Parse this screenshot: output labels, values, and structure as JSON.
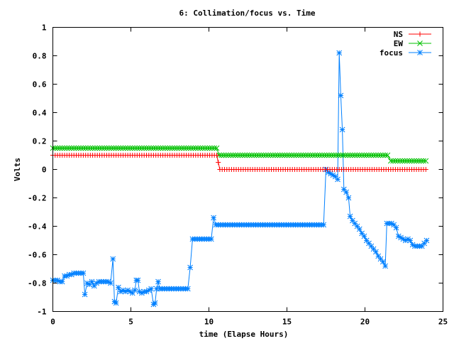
{
  "chart_data": {
    "type": "line",
    "title": "6: Collimation/focus vs. Time",
    "xlabel": "time (Elapse Hours)",
    "ylabel": "Volts",
    "xlim": [
      0,
      25
    ],
    "ylim": [
      -1,
      1
    ],
    "xticks": [
      0,
      5,
      10,
      15,
      20,
      25
    ],
    "yticks": [
      -1,
      -0.8,
      -0.6,
      -0.4,
      -0.2,
      0,
      0.2,
      0.4,
      0.6,
      0.8,
      1
    ],
    "xtick_labels": [
      "0",
      "5",
      "10",
      "15",
      "20",
      "25"
    ],
    "ytick_labels": [
      "-1",
      "-0.8",
      "-0.6",
      "-0.4",
      "-0.2",
      "0",
      "0.2",
      "0.4",
      "0.6",
      "0.8",
      "1"
    ],
    "grid": false,
    "legend_position": "top-right",
    "series": [
      {
        "name": "NS",
        "color": "#ff0000",
        "marker": "plus",
        "segments": [
          {
            "x_start": 0.0,
            "x_end": 10.5,
            "step": 0.15,
            "y": 0.1
          },
          {
            "x_start": 10.6,
            "x_end": 10.6,
            "step": 1,
            "y": 0.05
          },
          {
            "x_start": 10.7,
            "x_end": 24.0,
            "step": 0.15,
            "y": 0.0
          }
        ]
      },
      {
        "name": "EW",
        "color": "#00c000",
        "marker": "cross",
        "segments": [
          {
            "x_start": 0.0,
            "x_end": 10.5,
            "step": 0.15,
            "y": 0.15
          },
          {
            "x_start": 10.65,
            "x_end": 21.5,
            "step": 0.15,
            "y": 0.1
          },
          {
            "x_start": 21.65,
            "x_end": 24.0,
            "step": 0.15,
            "y": 0.06
          }
        ]
      },
      {
        "name": "focus",
        "color": "#0080ff",
        "marker": "star",
        "points": [
          [
            0.0,
            -0.78
          ],
          [
            0.15,
            -0.78
          ],
          [
            0.3,
            -0.78
          ],
          [
            0.45,
            -0.79
          ],
          [
            0.6,
            -0.79
          ],
          [
            0.75,
            -0.75
          ],
          [
            0.9,
            -0.75
          ],
          [
            1.05,
            -0.74
          ],
          [
            1.2,
            -0.74
          ],
          [
            1.35,
            -0.73
          ],
          [
            1.5,
            -0.73
          ],
          [
            1.65,
            -0.73
          ],
          [
            1.8,
            -0.73
          ],
          [
            1.95,
            -0.73
          ],
          [
            2.05,
            -0.88
          ],
          [
            2.2,
            -0.8
          ],
          [
            2.35,
            -0.81
          ],
          [
            2.5,
            -0.79
          ],
          [
            2.65,
            -0.82
          ],
          [
            2.8,
            -0.8
          ],
          [
            2.95,
            -0.79
          ],
          [
            3.1,
            -0.79
          ],
          [
            3.25,
            -0.79
          ],
          [
            3.4,
            -0.79
          ],
          [
            3.55,
            -0.79
          ],
          [
            3.7,
            -0.8
          ],
          [
            3.85,
            -0.63
          ],
          [
            3.95,
            -0.93
          ],
          [
            4.05,
            -0.94
          ],
          [
            4.2,
            -0.83
          ],
          [
            4.35,
            -0.86
          ],
          [
            4.5,
            -0.85
          ],
          [
            4.65,
            -0.86
          ],
          [
            4.8,
            -0.85
          ],
          [
            4.95,
            -0.86
          ],
          [
            5.1,
            -0.87
          ],
          [
            5.25,
            -0.85
          ],
          [
            5.35,
            -0.78
          ],
          [
            5.45,
            -0.78
          ],
          [
            5.55,
            -0.86
          ],
          [
            5.7,
            -0.87
          ],
          [
            5.85,
            -0.86
          ],
          [
            6.0,
            -0.86
          ],
          [
            6.15,
            -0.85
          ],
          [
            6.3,
            -0.84
          ],
          [
            6.45,
            -0.95
          ],
          [
            6.55,
            -0.94
          ],
          [
            6.65,
            -0.84
          ],
          [
            6.75,
            -0.79
          ],
          [
            6.85,
            -0.84
          ],
          [
            7.0,
            -0.84
          ],
          [
            7.15,
            -0.84
          ],
          [
            7.3,
            -0.84
          ],
          [
            7.45,
            -0.84
          ],
          [
            7.6,
            -0.84
          ],
          [
            7.75,
            -0.84
          ],
          [
            7.9,
            -0.84
          ],
          [
            8.05,
            -0.84
          ],
          [
            8.2,
            -0.84
          ],
          [
            8.35,
            -0.84
          ],
          [
            8.5,
            -0.84
          ],
          [
            8.65,
            -0.84
          ],
          [
            8.8,
            -0.69
          ],
          [
            8.95,
            -0.49
          ],
          [
            9.1,
            -0.49
          ],
          [
            9.25,
            -0.49
          ],
          [
            9.4,
            -0.49
          ],
          [
            9.55,
            -0.49
          ],
          [
            9.7,
            -0.49
          ],
          [
            9.85,
            -0.49
          ],
          [
            10.0,
            -0.49
          ],
          [
            10.15,
            -0.49
          ],
          [
            10.3,
            -0.34
          ],
          [
            10.45,
            -0.39
          ],
          [
            10.6,
            -0.39
          ],
          [
            10.75,
            -0.39
          ],
          [
            10.9,
            -0.39
          ],
          [
            11.05,
            -0.39
          ],
          [
            11.2,
            -0.39
          ],
          [
            11.35,
            -0.39
          ],
          [
            11.5,
            -0.39
          ],
          [
            11.65,
            -0.39
          ],
          [
            11.8,
            -0.39
          ],
          [
            11.95,
            -0.39
          ],
          [
            12.1,
            -0.39
          ],
          [
            12.25,
            -0.39
          ],
          [
            12.4,
            -0.39
          ],
          [
            12.55,
            -0.39
          ],
          [
            12.7,
            -0.39
          ],
          [
            12.85,
            -0.39
          ],
          [
            13.0,
            -0.39
          ],
          [
            13.15,
            -0.39
          ],
          [
            13.3,
            -0.39
          ],
          [
            13.45,
            -0.39
          ],
          [
            13.6,
            -0.39
          ],
          [
            13.75,
            -0.39
          ],
          [
            13.9,
            -0.39
          ],
          [
            14.05,
            -0.39
          ],
          [
            14.2,
            -0.39
          ],
          [
            14.35,
            -0.39
          ],
          [
            14.5,
            -0.39
          ],
          [
            14.65,
            -0.39
          ],
          [
            14.8,
            -0.39
          ],
          [
            14.95,
            -0.39
          ],
          [
            15.1,
            -0.39
          ],
          [
            15.25,
            -0.39
          ],
          [
            15.4,
            -0.39
          ],
          [
            15.55,
            -0.39
          ],
          [
            15.7,
            -0.39
          ],
          [
            15.85,
            -0.39
          ],
          [
            16.0,
            -0.39
          ],
          [
            16.15,
            -0.39
          ],
          [
            16.3,
            -0.39
          ],
          [
            16.45,
            -0.39
          ],
          [
            16.6,
            -0.39
          ],
          [
            16.75,
            -0.39
          ],
          [
            16.9,
            -0.39
          ],
          [
            17.05,
            -0.39
          ],
          [
            17.2,
            -0.39
          ],
          [
            17.35,
            -0.39
          ],
          [
            17.5,
            0.0
          ],
          [
            17.65,
            -0.02
          ],
          [
            17.8,
            -0.03
          ],
          [
            17.95,
            -0.04
          ],
          [
            18.1,
            -0.05
          ],
          [
            18.25,
            -0.07
          ],
          [
            18.35,
            0.82
          ],
          [
            18.45,
            0.52
          ],
          [
            18.55,
            0.28
          ],
          [
            18.65,
            -0.14
          ],
          [
            18.8,
            -0.16
          ],
          [
            18.95,
            -0.2
          ],
          [
            19.05,
            -0.33
          ],
          [
            19.2,
            -0.36
          ],
          [
            19.35,
            -0.38
          ],
          [
            19.5,
            -0.4
          ],
          [
            19.65,
            -0.42
          ],
          [
            19.8,
            -0.45
          ],
          [
            19.95,
            -0.47
          ],
          [
            20.1,
            -0.5
          ],
          [
            20.25,
            -0.52
          ],
          [
            20.4,
            -0.54
          ],
          [
            20.55,
            -0.56
          ],
          [
            20.7,
            -0.58
          ],
          [
            20.85,
            -0.61
          ],
          [
            21.0,
            -0.63
          ],
          [
            21.15,
            -0.65
          ],
          [
            21.3,
            -0.68
          ],
          [
            21.4,
            -0.38
          ],
          [
            21.55,
            -0.38
          ],
          [
            21.7,
            -0.38
          ],
          [
            21.85,
            -0.39
          ],
          [
            22.0,
            -0.41
          ],
          [
            22.15,
            -0.47
          ],
          [
            22.3,
            -0.48
          ],
          [
            22.45,
            -0.49
          ],
          [
            22.6,
            -0.5
          ],
          [
            22.75,
            -0.49
          ],
          [
            22.9,
            -0.5
          ],
          [
            23.05,
            -0.53
          ],
          [
            23.2,
            -0.54
          ],
          [
            23.35,
            -0.54
          ],
          [
            23.5,
            -0.54
          ],
          [
            23.65,
            -0.54
          ],
          [
            23.8,
            -0.52
          ],
          [
            23.95,
            -0.5
          ]
        ]
      }
    ]
  }
}
